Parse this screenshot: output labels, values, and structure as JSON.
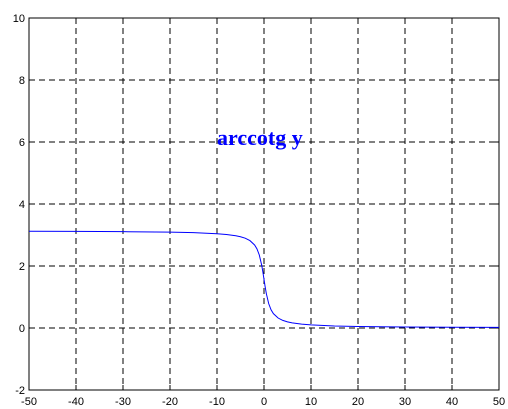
{
  "chart_data": {
    "type": "line",
    "title": "",
    "xlabel": "",
    "ylabel": "",
    "xlim": [
      -50,
      50
    ],
    "ylim": [
      -2,
      10
    ],
    "grid": true,
    "xticks": [
      -50,
      -40,
      -30,
      -20,
      -10,
      0,
      10,
      20,
      30,
      40,
      50
    ],
    "yticks": [
      -2,
      0,
      2,
      4,
      6,
      8,
      10
    ],
    "xtick_labels": [
      "-50",
      "-40",
      "-30",
      "-20",
      "-10",
      "0",
      "10",
      "20",
      "30",
      "40",
      "50"
    ],
    "ytick_labels": [
      "-2",
      "0",
      "2",
      "4",
      "6",
      "8",
      "10"
    ],
    "annotation": {
      "text": "arccotg y",
      "x": -10,
      "y": 5.9,
      "color": "#0000ff"
    },
    "series": [
      {
        "color": "#0000ff",
        "x": [
          -50,
          -40,
          -30,
          -20,
          -15,
          -10,
          -8,
          -6,
          -5,
          -4,
          -3,
          -2,
          -1.5,
          -1,
          -0.5,
          -0.25,
          0,
          0.25,
          0.5,
          1,
          1.5,
          2,
          3,
          4,
          5,
          6,
          8,
          10,
          15,
          20,
          30,
          40,
          50
        ],
        "y": [
          3.12,
          3.117,
          3.108,
          3.092,
          3.075,
          3.042,
          3.017,
          2.976,
          2.944,
          2.897,
          2.82,
          2.678,
          2.554,
          2.356,
          2.034,
          1.816,
          1.571,
          1.326,
          1.107,
          0.785,
          0.588,
          0.464,
          0.322,
          0.245,
          0.197,
          0.165,
          0.124,
          0.1,
          0.066,
          0.05,
          0.033,
          0.025,
          0.02
        ]
      }
    ]
  }
}
